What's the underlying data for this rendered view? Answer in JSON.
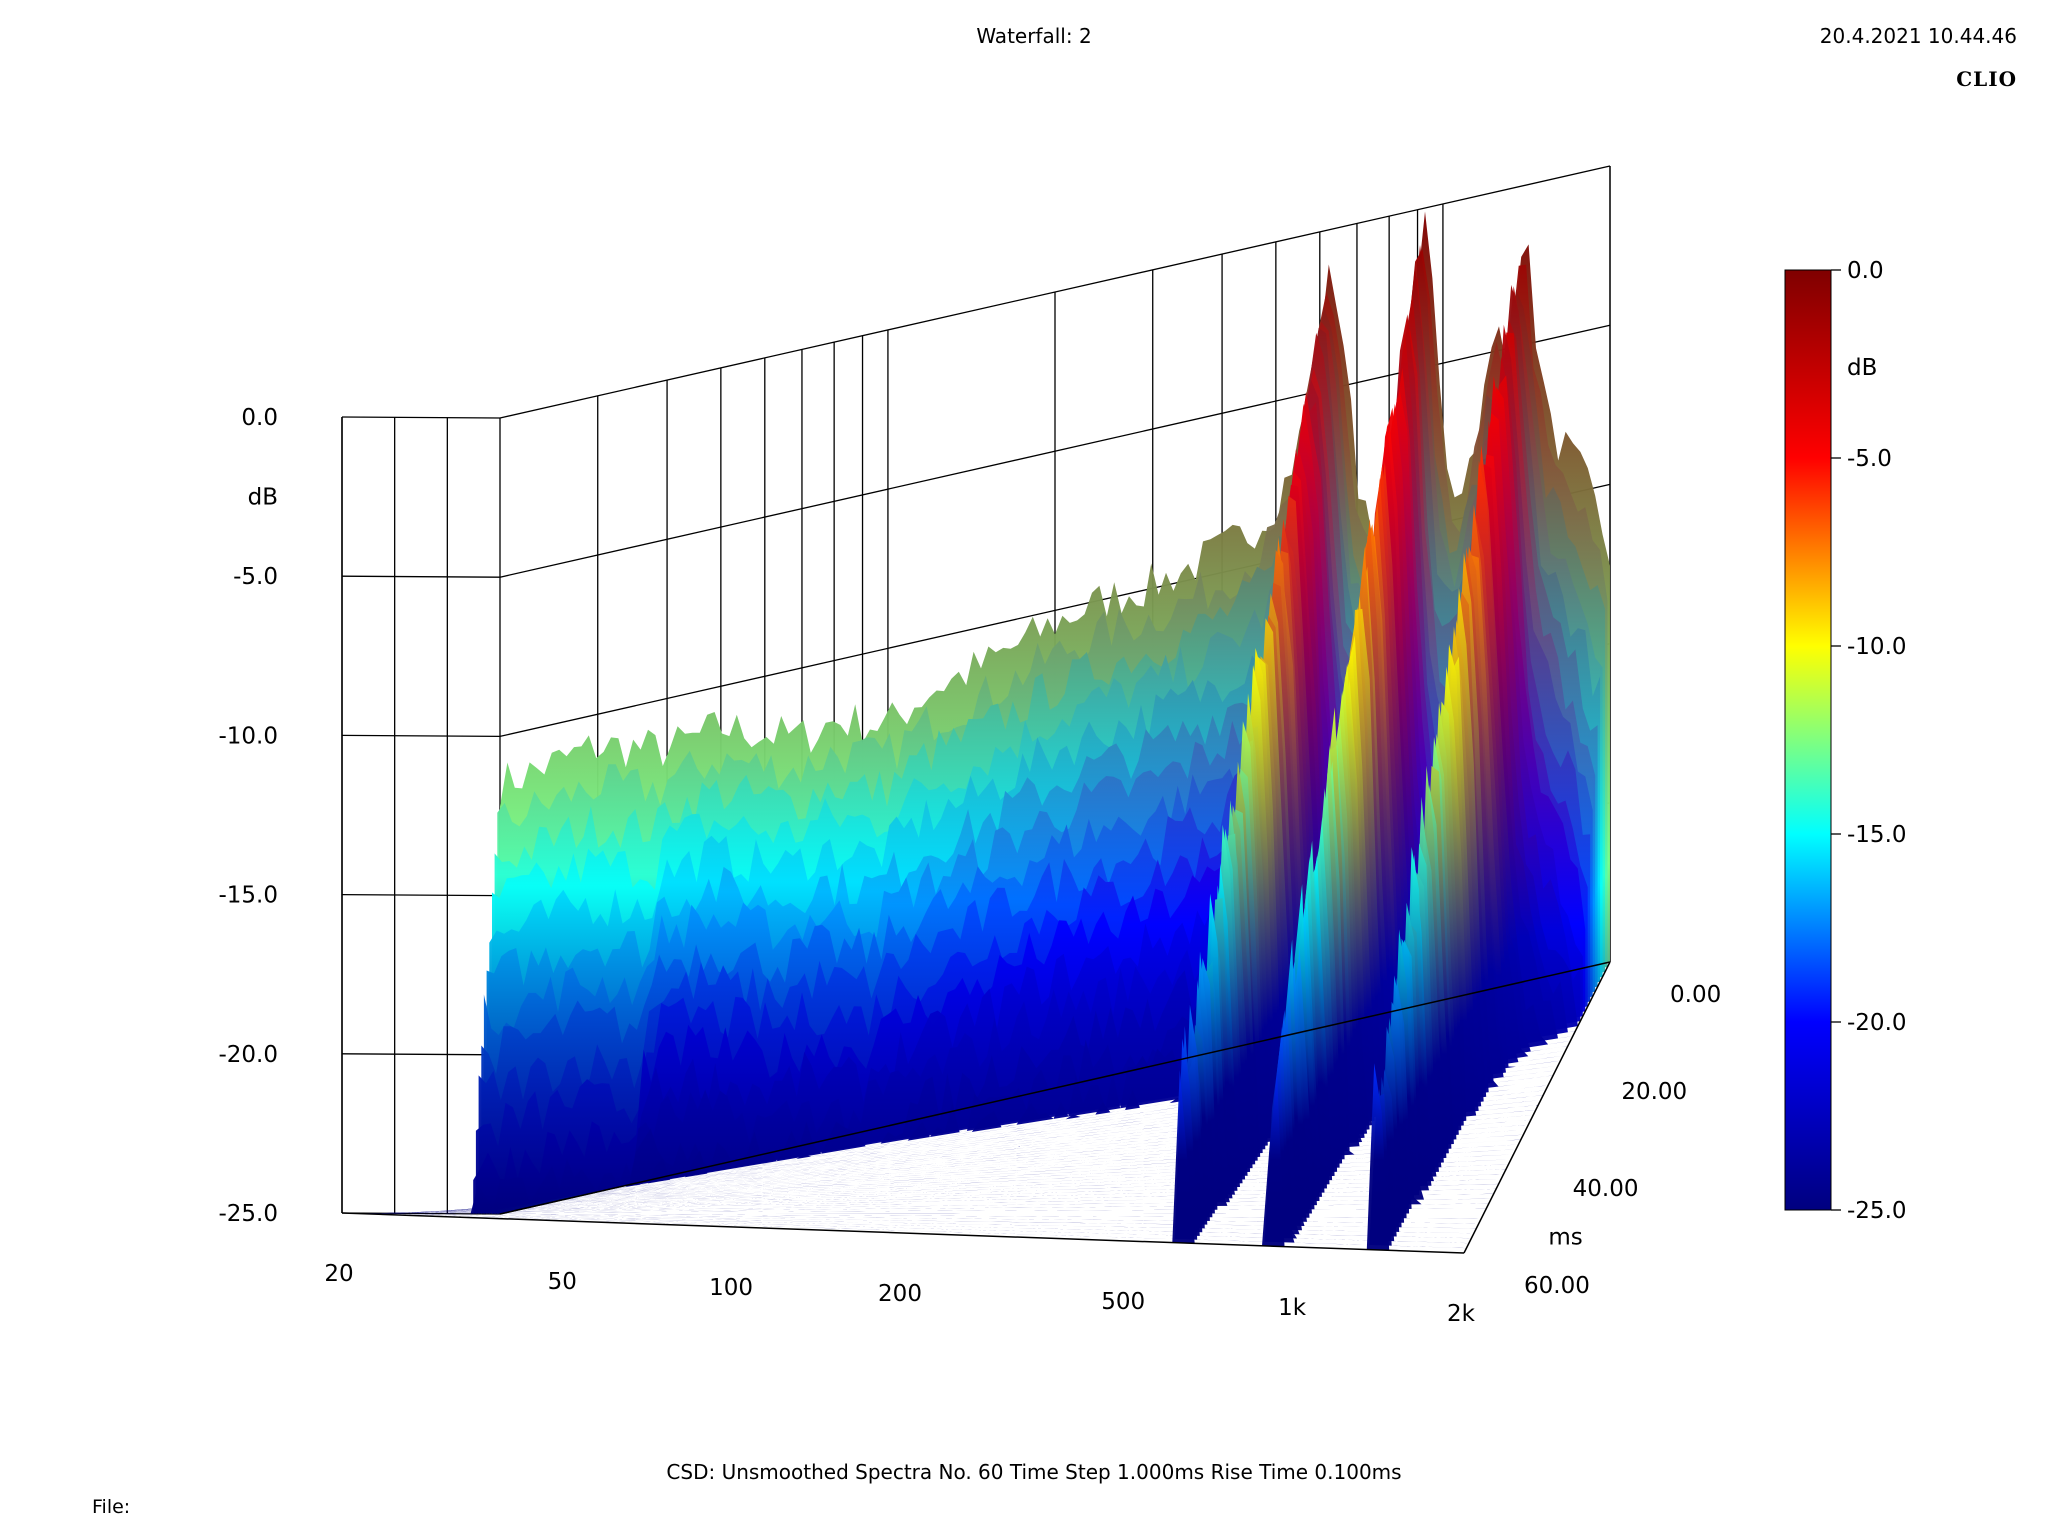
{
  "header": {
    "title": "Waterfall: 2",
    "datetime": "20.4.2021 10.44.46",
    "brand": "CLIO"
  },
  "footer": {
    "info": "CSD:    Unsmoothed    Spectra No. 60    Time Step 1.000ms    Rise Time 0.100ms",
    "file_label": "File:"
  },
  "colors": {
    "colormap": [
      "#00007f",
      "#0000ff",
      "#00ffff",
      "#ffff00",
      "#ff0000",
      "#7f0000"
    ],
    "frame": "#000000"
  },
  "chart_data": {
    "type": "waterfall",
    "x": {
      "scale": "log",
      "unit": "Hz",
      "range": [
        20,
        2000
      ],
      "ticks": [
        {
          "value": 20,
          "label": "20"
        },
        {
          "value": 50,
          "label": "50"
        },
        {
          "value": 100,
          "label": "100"
        },
        {
          "value": 200,
          "label": "200"
        },
        {
          "value": 500,
          "label": "500"
        },
        {
          "value": 1000,
          "label": "1k"
        },
        {
          "value": 2000,
          "label": "2k"
        }
      ]
    },
    "z": {
      "label": "dB",
      "range": [
        -25,
        0
      ],
      "ticks": [
        "0.0",
        "-5.0",
        "-10.0",
        "-15.0",
        "-20.0",
        "-25.0"
      ]
    },
    "t": {
      "label": "ms",
      "range": [
        0,
        60
      ],
      "ticks": [
        "0.00",
        "20.00",
        "40.00",
        "60.00"
      ]
    },
    "colorbar": {
      "label": "dB",
      "ticks": [
        "0.0",
        "-5.0",
        "-10.0",
        "-15.0",
        "-20.0",
        "-25.0"
      ]
    },
    "spectra_count": 60,
    "time_step_ms": 1.0,
    "rise_time_ms": 0.1,
    "first_slice_db": [
      [
        20,
        -11.5
      ],
      [
        30,
        -11.0
      ],
      [
        40,
        -11.6
      ],
      [
        50,
        -11.3
      ],
      [
        60,
        -11.8
      ],
      [
        70,
        -12.2
      ],
      [
        80,
        -11.9
      ],
      [
        100,
        -12.4
      ],
      [
        120,
        -11.6
      ],
      [
        150,
        -11.2
      ],
      [
        200,
        -10.4
      ],
      [
        250,
        -10.0
      ],
      [
        300,
        -9.9
      ],
      [
        350,
        -9.6
      ],
      [
        400,
        -9.3
      ],
      [
        450,
        -8.9
      ],
      [
        500,
        -8.3
      ],
      [
        550,
        -6.5
      ],
      [
        600,
        -3.0
      ],
      [
        630,
        -1.2
      ],
      [
        660,
        -3.3
      ],
      [
        700,
        -8.0
      ],
      [
        760,
        -9.7
      ],
      [
        820,
        -7.5
      ],
      [
        880,
        -3.5
      ],
      [
        920,
        -0.3
      ],
      [
        960,
        -2.5
      ],
      [
        1000,
        -7.5
      ],
      [
        1060,
        -9.2
      ],
      [
        1120,
        -8.2
      ],
      [
        1200,
        -6.0
      ],
      [
        1250,
        -4.2
      ],
      [
        1300,
        -5.6
      ],
      [
        1350,
        -3.3
      ],
      [
        1400,
        -0.9
      ],
      [
        1450,
        -3.8
      ],
      [
        1550,
        -7.8
      ],
      [
        1700,
        -8.8
      ],
      [
        1850,
        -10.2
      ],
      [
        2000,
        -12.2
      ]
    ]
  }
}
